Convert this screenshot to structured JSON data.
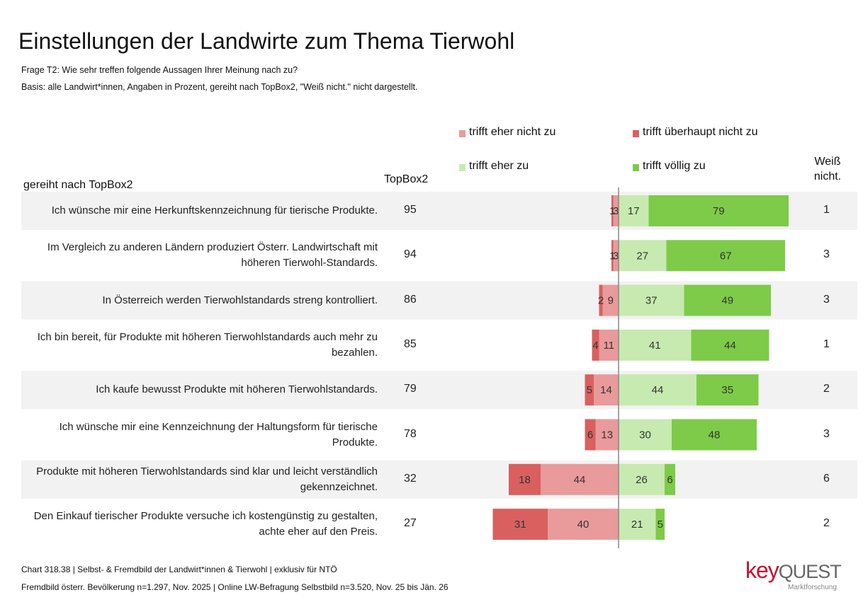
{
  "chart_data": {
    "type": "diverging_bar",
    "title": "Einstellungen der Landwirte zum Thema Tierwohl",
    "subtitle": [
      "Frage T2: Wie sehr treffen folgende Aussagen Ihrer Meinung nach zu?",
      "Basis: alle Landwirt*innen, Angaben in Prozent, gereiht nach TopBox2, \"Weiß nicht.\" nicht dargestellt."
    ],
    "category_header": "gereiht nach TopBox2",
    "categories": [
      "Ich wünsche mir eine Herkunftskennzeichnung für tierische Produkte.",
      "Im Vergleich zu anderen Ländern produziert Österr. Landwirtschaft mit höheren Tierwohl-Standards.",
      "In Österreich werden Tierwohlstandards streng kontrolliert.",
      "Ich bin bereit, für Produkte mit höheren Tierwohlstandards auch mehr zu bezahlen.",
      "Ich kaufe bewusst Produkte mit höheren Tierwohlstandards.",
      "Ich wünsche mir eine Kennzeichnung der Haltungsform für tierische Produkte.",
      "Produkte mit höheren Tierwohlstandards sind klar und leicht verständlich gekennzeichnet.",
      "Den Einkauf tierischer Produkte versuche ich kostengünstig zu gestalten, achte eher auf den Preis."
    ],
    "series": [
      {
        "name": "trifft eher nicht zu",
        "color": "#e99a9b",
        "side": "left",
        "values": [
          3,
          3,
          9,
          11,
          14,
          13,
          44,
          40
        ]
      },
      {
        "name": "trifft überhaupt nicht zu",
        "color": "#d9605f",
        "side": "left",
        "values": [
          1,
          1,
          2,
          4,
          5,
          6,
          18,
          31
        ]
      },
      {
        "name": "trifft eher zu",
        "color": "#c7eab0",
        "side": "right",
        "values": [
          17,
          27,
          37,
          41,
          44,
          30,
          26,
          21
        ]
      },
      {
        "name": "trifft völlig zu",
        "color": "#7dcb48",
        "side": "right",
        "values": [
          79,
          67,
          49,
          44,
          35,
          48,
          6,
          5
        ]
      }
    ],
    "topbox2": {
      "header": "TopBox2",
      "values": [
        95,
        94,
        86,
        85,
        79,
        78,
        32,
        27
      ]
    },
    "weiss_nicht": {
      "header": "Weiß nicht.",
      "values": [
        1,
        3,
        3,
        1,
        2,
        3,
        6,
        2
      ]
    },
    "footer": [
      "Chart 318.38 | Selbst- & Fremdbild der Landwirt*innen &  Tierwohl | exklusiv für NTÖ",
      "Fremdbild österr. Bevölkerung  n=1.297, Nov. 2025 | Online LW-Befragung Selbstbild n=3.520, Nov. 25 bis Jän. 26"
    ],
    "logo": {
      "key": "key",
      "quest": "QUEST",
      "tagline": "Marktforschung"
    }
  }
}
